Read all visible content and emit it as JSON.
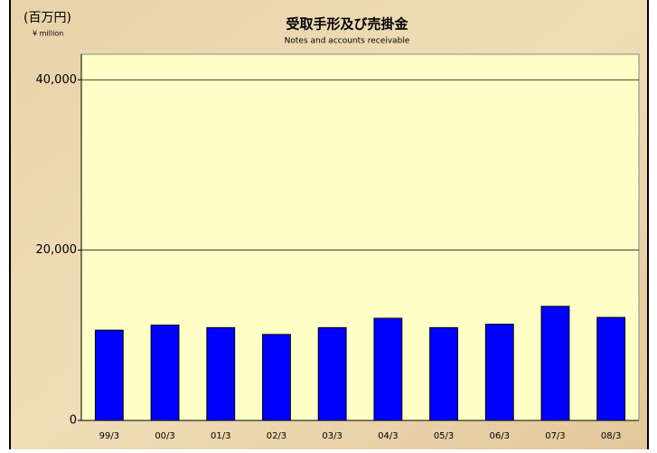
{
  "chart_data": {
    "type": "bar",
    "title": "受取手形及び売掛金",
    "subtitle": "Notes and accounts receivable",
    "unit_label": "(百万円)",
    "unit_label_en": "¥ million",
    "categories": [
      "99/3",
      "00/3",
      "01/3",
      "02/3",
      "03/3",
      "04/3",
      "05/3",
      "06/3",
      "07/3",
      "08/3"
    ],
    "values": [
      10600,
      11200,
      10900,
      10100,
      10900,
      12000,
      10900,
      11300,
      13400,
      12100
    ],
    "color": "#0000ff",
    "ylim": [
      0,
      43000
    ],
    "yticks": [
      0,
      {
        "value": 20000,
        "label": "20,000"
      },
      {
        "value": 40000,
        "label": "40,000"
      }
    ],
    "grid": true
  }
}
